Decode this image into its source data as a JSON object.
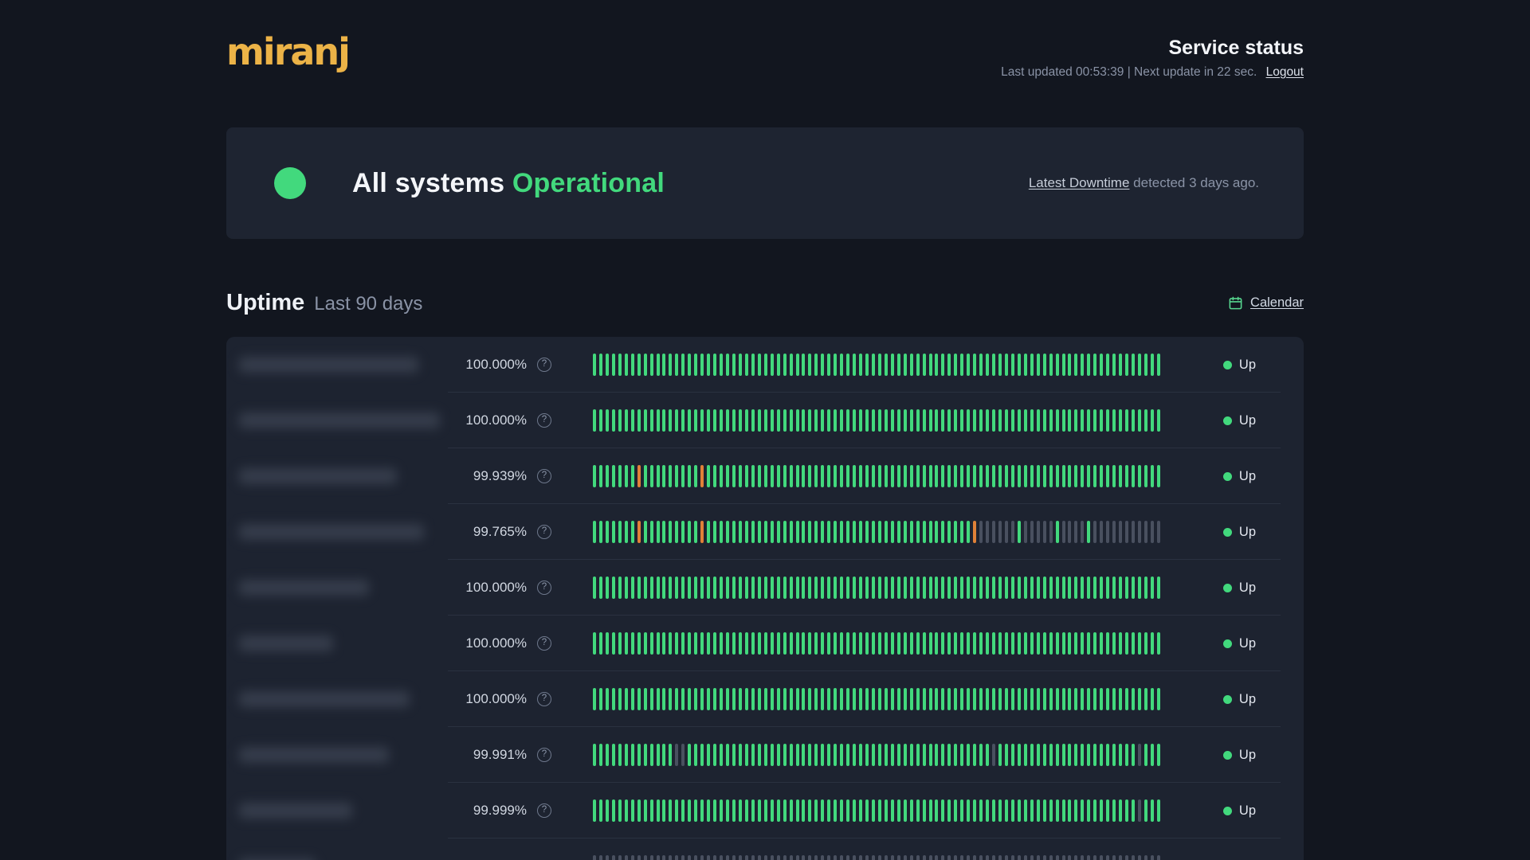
{
  "brand": {
    "logo_text": "miranj"
  },
  "header": {
    "title": "Service status",
    "last_updated": "Last updated 00:53:39 | Next update in 22 sec.",
    "logout_label": "Logout"
  },
  "banner": {
    "status_prefix": "All systems",
    "status_word": "Operational",
    "downtime_link": "Latest Downtime",
    "downtime_text": " detected 3 days ago."
  },
  "uptime_section": {
    "title": "Uptime",
    "subtitle": "Last 90 days",
    "calendar_label": "Calendar"
  },
  "legend": {
    "help_glyph": "?"
  },
  "colors": {
    "accent_green": "#42d97d",
    "bar_green": "#42d97d",
    "bar_orange": "#e08138",
    "bar_gray": "#49505f"
  },
  "chart_data": {
    "type": "bar",
    "note": "uptime history, 90 daily bars per service; g=operational(green), o=incident(orange), d=no-data(gray)"
  },
  "rows": [
    {
      "uptime": "100.000%",
      "status": "Up",
      "name_width": 225,
      "bars": [
        [
          "g",
          90
        ]
      ]
    },
    {
      "uptime": "100.000%",
      "status": "Up",
      "name_width": 252,
      "bars": [
        [
          "g",
          90
        ]
      ]
    },
    {
      "uptime": "99.939%",
      "status": "Up",
      "name_width": 198,
      "bars": [
        [
          "g",
          7
        ],
        [
          "o",
          1
        ],
        [
          "g",
          9
        ],
        [
          "o",
          1
        ],
        [
          "g",
          72
        ]
      ]
    },
    {
      "uptime": "99.765%",
      "status": "Up",
      "name_width": 232,
      "bars": [
        [
          "g",
          7
        ],
        [
          "o",
          1
        ],
        [
          "g",
          9
        ],
        [
          "o",
          1
        ],
        [
          "g",
          42
        ],
        [
          "o",
          1
        ],
        [
          "d",
          6
        ],
        [
          "g",
          1
        ],
        [
          "d",
          5
        ],
        [
          "g",
          1
        ],
        [
          "d",
          4
        ],
        [
          "g",
          1
        ],
        [
          "d",
          11
        ]
      ]
    },
    {
      "uptime": "100.000%",
      "status": "Up",
      "name_width": 163,
      "bars": [
        [
          "g",
          90
        ]
      ]
    },
    {
      "uptime": "100.000%",
      "status": "Up",
      "name_width": 118,
      "bars": [
        [
          "g",
          90
        ]
      ]
    },
    {
      "uptime": "100.000%",
      "status": "Up",
      "name_width": 214,
      "bars": [
        [
          "g",
          90
        ]
      ]
    },
    {
      "uptime": "99.991%",
      "status": "Up",
      "name_width": 188,
      "bars": [
        [
          "g",
          13
        ],
        [
          "d",
          2
        ],
        [
          "g",
          48
        ],
        [
          "d",
          1
        ],
        [
          "g",
          22
        ],
        [
          "d",
          1
        ],
        [
          "g",
          3
        ]
      ]
    },
    {
      "uptime": "99.999%",
      "status": "Up",
      "name_width": 142,
      "bars": [
        [
          "g",
          86
        ],
        [
          "d",
          1
        ],
        [
          "g",
          3
        ]
      ]
    },
    {
      "uptime": "",
      "status": "",
      "name_width": 96,
      "bars": [
        [
          "d",
          90
        ]
      ]
    }
  ]
}
